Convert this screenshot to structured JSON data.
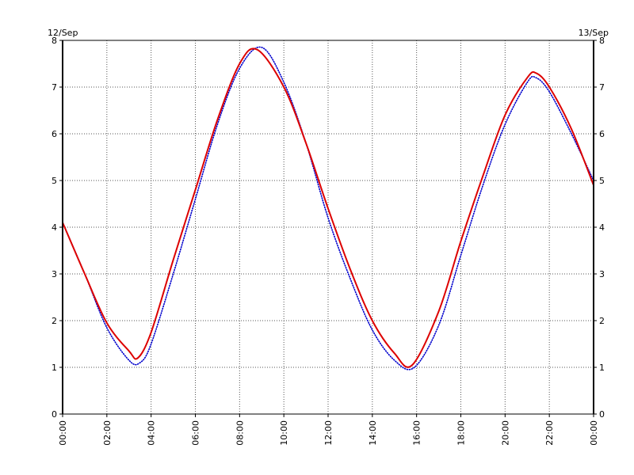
{
  "chart_data": {
    "type": "line",
    "title": "",
    "xlabel": "",
    "ylabel": "",
    "date_left": "12/Sep",
    "date_right": "13/Sep",
    "x_tick_labels": [
      "00:00",
      "02:00",
      "04:00",
      "06:00",
      "08:00",
      "10:00",
      "12:00",
      "14:00",
      "16:00",
      "18:00",
      "20:00",
      "22:00",
      "00:00"
    ],
    "x_tick_hours": [
      0,
      2,
      4,
      6,
      8,
      10,
      12,
      14,
      16,
      18,
      20,
      22,
      24
    ],
    "x_range_hours": [
      0,
      24
    ],
    "y_ticks": [
      "0",
      "1",
      "2",
      "3",
      "4",
      "5",
      "6",
      "7",
      "8"
    ],
    "ylim": [
      0,
      8
    ],
    "grid": true,
    "legend": "none",
    "series": [
      {
        "color": "#0000cc",
        "style": "dotted",
        "x_hours": [
          0,
          1,
          2,
          3,
          3.5,
          4,
          5,
          6,
          7,
          8,
          9,
          10,
          11,
          12,
          13,
          14,
          15,
          15.9,
          17,
          18,
          19,
          20,
          21,
          21.4,
          22,
          23,
          24
        ],
        "values": [
          4.1,
          3.0,
          1.85,
          1.15,
          1.1,
          1.5,
          3.0,
          4.6,
          6.2,
          7.4,
          7.85,
          7.1,
          5.8,
          4.2,
          2.9,
          1.8,
          1.15,
          1.0,
          1.9,
          3.4,
          4.9,
          6.2,
          7.1,
          7.2,
          6.9,
          6.0,
          5.0
        ]
      },
      {
        "color": "#dd0000",
        "style": "solid",
        "x_hours": [
          0,
          1,
          2,
          3,
          3.4,
          4,
          5,
          6,
          7,
          8,
          8.8,
          10,
          11,
          12,
          13,
          14,
          15,
          15.8,
          17,
          18,
          19,
          20,
          21,
          21.4,
          22,
          23,
          24
        ],
        "values": [
          4.1,
          3.0,
          1.95,
          1.35,
          1.2,
          1.75,
          3.3,
          4.8,
          6.3,
          7.5,
          7.8,
          7.0,
          5.8,
          4.4,
          3.1,
          2.0,
          1.3,
          1.05,
          2.2,
          3.7,
          5.1,
          6.4,
          7.2,
          7.3,
          7.0,
          6.1,
          4.9
        ]
      }
    ]
  }
}
